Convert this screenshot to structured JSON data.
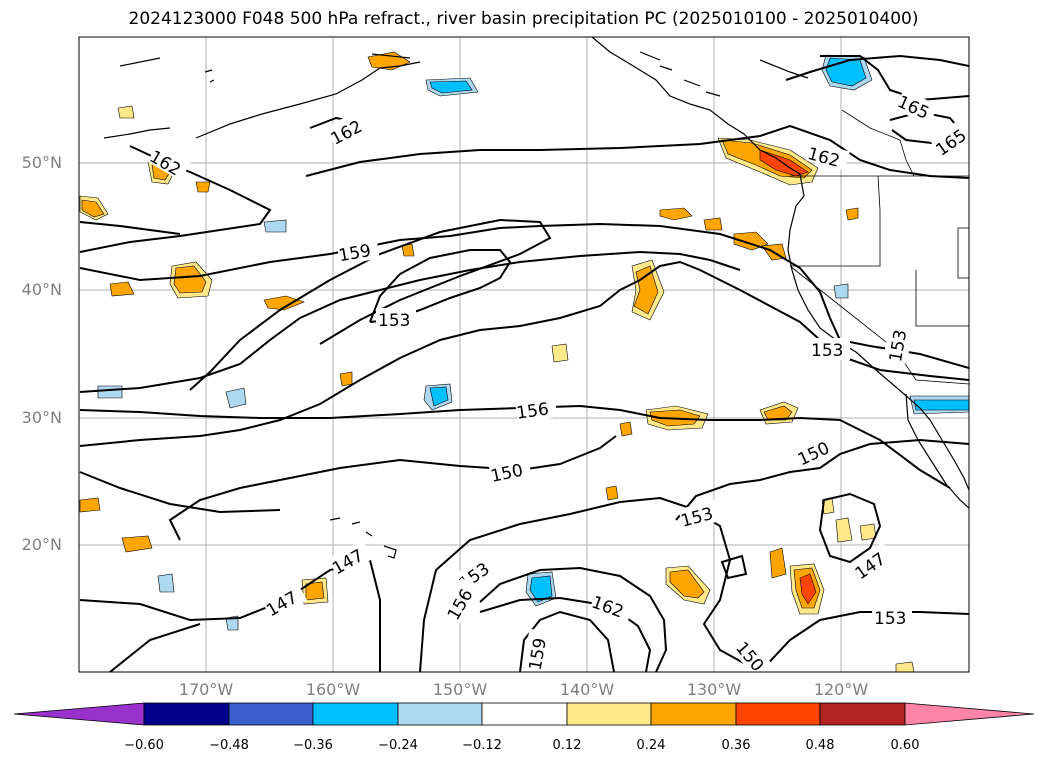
{
  "title": "2024123000 F048 500 hPa refract., river basin precipitation PC (2025010100 - 2025010400)",
  "lat_labels": [
    "50°N",
    "40°N",
    "30°N",
    "20°N"
  ],
  "lon_labels": [
    "170°W",
    "160°W",
    "150°W",
    "140°W",
    "130°W",
    "120°W"
  ],
  "contour_labels": [
    "162",
    "162",
    "165",
    "165",
    "162",
    "159",
    "153",
    "153",
    "153",
    "156",
    "150",
    "150",
    "153",
    "147",
    "147",
    "153",
    "156",
    "159",
    "162",
    "150",
    "147",
    "153"
  ],
  "colorbar": {
    "ticks": [
      "−0.60",
      "−0.48",
      "−0.36",
      "−0.24",
      "−0.12",
      "0.12",
      "0.24",
      "0.36",
      "0.48",
      "0.60"
    ],
    "colors": [
      "#9932cc",
      "#00008b",
      "#3a5fcd",
      "#00bfff",
      "#add8f0",
      "#ffffff",
      "#ffe98a",
      "#ffa500",
      "#ff4500",
      "#b22222",
      "#ff85a8"
    ]
  },
  "colors": {
    "negative_fill": "#00bfff",
    "weak_negative_fill": "#add8f0",
    "weak_positive_fill": "#ffe98a",
    "positive_fill": "#ffa500",
    "strong_positive_fill": "#ff4500"
  }
}
